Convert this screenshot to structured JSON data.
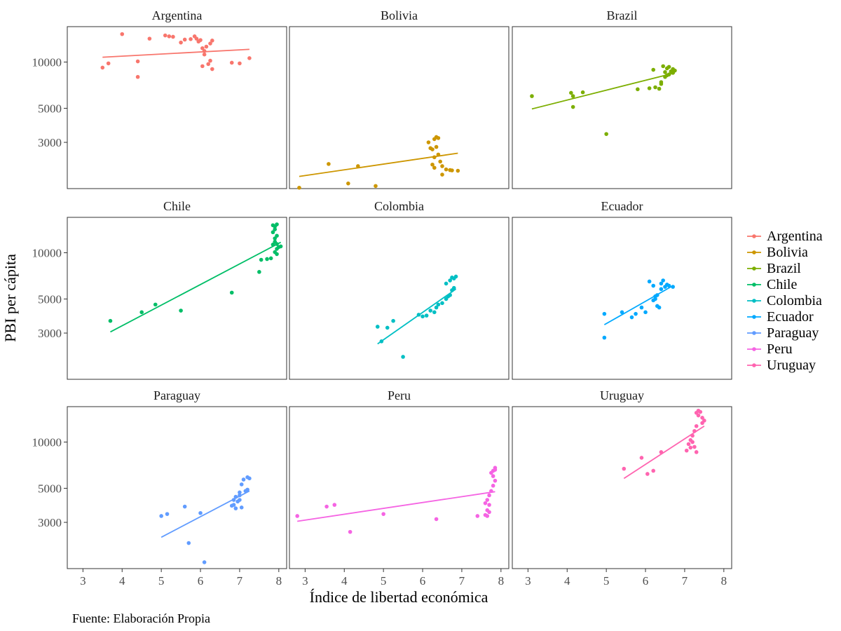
{
  "chart_data": {
    "type": "scatter",
    "layout": "facet-grid-3x3",
    "xlabel": "Índice de libertad económica",
    "ylabel": "PBI per cápita",
    "caption": "Fuente: Elaboración Propia",
    "xlim": [
      2.6,
      8.2
    ],
    "x_ticks": [
      3,
      4,
      5,
      6,
      7,
      8
    ],
    "y_scale": "log",
    "ylim": [
      1500,
      17000
    ],
    "y_ticks": [
      3000,
      5000,
      10000
    ],
    "y_tick_labels": [
      "3000",
      "5000",
      "10000"
    ],
    "grid": false,
    "legend_position": "right",
    "trend_line": "linear fit per panel",
    "series": [
      {
        "name": "Argentina",
        "color": "#F8766D",
        "points": [
          [
            3.5,
            9200
          ],
          [
            3.65,
            9800
          ],
          [
            4.0,
            15200
          ],
          [
            4.4,
            10100
          ],
          [
            4.4,
            8000
          ],
          [
            4.7,
            14200
          ],
          [
            5.1,
            14900
          ],
          [
            5.2,
            14700
          ],
          [
            5.3,
            14600
          ],
          [
            5.5,
            13400
          ],
          [
            5.6,
            14000
          ],
          [
            5.75,
            14100
          ],
          [
            5.85,
            14700
          ],
          [
            5.9,
            14200
          ],
          [
            5.95,
            13600
          ],
          [
            6.0,
            13900
          ],
          [
            6.05,
            12300
          ],
          [
            6.1,
            11800
          ],
          [
            6.15,
            12600
          ],
          [
            6.05,
            9400
          ],
          [
            6.1,
            11200
          ],
          [
            6.25,
            13200
          ],
          [
            6.3,
            13800
          ],
          [
            6.2,
            9700
          ],
          [
            6.25,
            10200
          ],
          [
            6.3,
            9000
          ],
          [
            6.8,
            9900
          ],
          [
            7.0,
            9800
          ],
          [
            7.25,
            10600
          ]
        ],
        "fit": [
          [
            3.5,
            10750
          ],
          [
            7.25,
            12100
          ]
        ]
      },
      {
        "name": "Bolivia",
        "color": "#CD9600",
        "points": [
          [
            2.85,
            1520
          ],
          [
            3.6,
            2170
          ],
          [
            4.1,
            1620
          ],
          [
            4.35,
            2100
          ],
          [
            4.8,
            1560
          ],
          [
            6.15,
            3000
          ],
          [
            6.2,
            2750
          ],
          [
            6.25,
            2700
          ],
          [
            6.3,
            3150
          ],
          [
            6.35,
            2800
          ],
          [
            6.3,
            2400
          ],
          [
            6.4,
            2500
          ],
          [
            6.45,
            2250
          ],
          [
            6.5,
            2100
          ],
          [
            6.6,
            2000
          ],
          [
            6.7,
            1980
          ],
          [
            6.75,
            1970
          ],
          [
            6.9,
            1960
          ],
          [
            6.35,
            3250
          ],
          [
            6.4,
            3200
          ],
          [
            6.5,
            1850
          ],
          [
            6.3,
            2050
          ],
          [
            6.25,
            2150
          ]
        ],
        "fit": [
          [
            2.85,
            1800
          ],
          [
            6.9,
            2550
          ]
        ]
      },
      {
        "name": "Brazil",
        "color": "#7CAE00",
        "points": [
          [
            3.1,
            6000
          ],
          [
            4.1,
            6300
          ],
          [
            4.15,
            6000
          ],
          [
            4.15,
            5100
          ],
          [
            4.4,
            6350
          ],
          [
            5.0,
            3400
          ],
          [
            5.8,
            6650
          ],
          [
            6.1,
            6750
          ],
          [
            6.2,
            8900
          ],
          [
            6.25,
            6850
          ],
          [
            6.35,
            6700
          ],
          [
            6.4,
            7200
          ],
          [
            6.4,
            7400
          ],
          [
            6.45,
            9400
          ],
          [
            6.5,
            8000
          ],
          [
            6.5,
            8600
          ],
          [
            6.55,
            9100
          ],
          [
            6.6,
            8300
          ],
          [
            6.65,
            8700
          ],
          [
            6.7,
            9000
          ],
          [
            6.7,
            8500
          ],
          [
            6.75,
            8800
          ],
          [
            6.6,
            9300
          ],
          [
            6.55,
            8200
          ]
        ],
        "fit": [
          [
            3.1,
            4950
          ],
          [
            6.75,
            8500
          ]
        ]
      },
      {
        "name": "Chile",
        "color": "#00BE67",
        "points": [
          [
            3.7,
            3600
          ],
          [
            4.5,
            4100
          ],
          [
            4.85,
            4600
          ],
          [
            5.5,
            4200
          ],
          [
            6.8,
            5500
          ],
          [
            7.5,
            7500
          ],
          [
            7.55,
            9000
          ],
          [
            7.7,
            9100
          ],
          [
            7.8,
            9200
          ],
          [
            7.85,
            15100
          ],
          [
            7.9,
            14800
          ],
          [
            7.95,
            15300
          ],
          [
            7.9,
            14200
          ],
          [
            7.85,
            13600
          ],
          [
            7.9,
            12400
          ],
          [
            7.95,
            11400
          ],
          [
            8.0,
            10900
          ],
          [
            7.95,
            10600
          ],
          [
            8.05,
            11000
          ],
          [
            7.9,
            10100
          ],
          [
            7.95,
            9800
          ],
          [
            7.85,
            11300
          ],
          [
            7.9,
            11800
          ],
          [
            7.95,
            12900
          ]
        ],
        "fit": [
          [
            3.7,
            3050
          ],
          [
            8.05,
            11700
          ]
        ]
      },
      {
        "name": "Colombia",
        "color": "#00BFC4",
        "points": [
          [
            4.85,
            3300
          ],
          [
            4.95,
            2650
          ],
          [
            5.1,
            3250
          ],
          [
            5.25,
            3600
          ],
          [
            5.5,
            2100
          ],
          [
            5.9,
            3950
          ],
          [
            6.0,
            3850
          ],
          [
            6.1,
            3900
          ],
          [
            6.2,
            4200
          ],
          [
            6.3,
            4100
          ],
          [
            6.35,
            4400
          ],
          [
            6.4,
            4600
          ],
          [
            6.5,
            4700
          ],
          [
            6.6,
            5000
          ],
          [
            6.7,
            5300
          ],
          [
            6.75,
            5700
          ],
          [
            6.8,
            5900
          ],
          [
            6.6,
            6300
          ],
          [
            6.7,
            6600
          ],
          [
            6.8,
            6800
          ],
          [
            6.85,
            7000
          ],
          [
            6.75,
            6900
          ],
          [
            6.65,
            5200
          ]
        ],
        "fit": [
          [
            4.85,
            2550
          ],
          [
            6.85,
            5800
          ]
        ]
      },
      {
        "name": "Ecuador",
        "color": "#00A9FF",
        "points": [
          [
            4.95,
            4000
          ],
          [
            4.95,
            2800
          ],
          [
            5.4,
            4100
          ],
          [
            5.65,
            3800
          ],
          [
            5.75,
            4000
          ],
          [
            5.9,
            4400
          ],
          [
            6.0,
            4100
          ],
          [
            6.1,
            6500
          ],
          [
            6.2,
            4900
          ],
          [
            6.25,
            5200
          ],
          [
            6.3,
            4500
          ],
          [
            6.35,
            4400
          ],
          [
            6.4,
            5800
          ],
          [
            6.5,
            6000
          ],
          [
            6.55,
            6200
          ],
          [
            6.6,
            6100
          ],
          [
            6.7,
            6000
          ],
          [
            6.2,
            6100
          ],
          [
            6.25,
            5000
          ],
          [
            6.3,
            5300
          ],
          [
            6.4,
            6300
          ],
          [
            6.45,
            6600
          ]
        ],
        "fit": [
          [
            4.95,
            3400
          ],
          [
            6.7,
            6100
          ]
        ]
      },
      {
        "name": "Paraguay",
        "color": "#619CFF",
        "points": [
          [
            5.0,
            3300
          ],
          [
            5.15,
            3400
          ],
          [
            5.6,
            3800
          ],
          [
            5.7,
            2200
          ],
          [
            6.0,
            3450
          ],
          [
            6.1,
            1650
          ],
          [
            6.8,
            3850
          ],
          [
            6.85,
            3900
          ],
          [
            6.9,
            3700
          ],
          [
            6.95,
            4100
          ],
          [
            7.0,
            4200
          ],
          [
            7.0,
            4700
          ],
          [
            7.05,
            5300
          ],
          [
            7.05,
            3750
          ],
          [
            7.1,
            5700
          ],
          [
            7.15,
            4800
          ],
          [
            7.2,
            5900
          ],
          [
            7.25,
            5800
          ],
          [
            7.2,
            4900
          ],
          [
            6.9,
            4400
          ],
          [
            6.85,
            4200
          ],
          [
            7.0,
            4500
          ]
        ],
        "fit": [
          [
            5.0,
            2400
          ],
          [
            7.25,
            4800
          ]
        ]
      },
      {
        "name": "Peru",
        "color": "#F564E3",
        "points": [
          [
            2.8,
            3300
          ],
          [
            3.55,
            3800
          ],
          [
            3.75,
            3900
          ],
          [
            4.15,
            2600
          ],
          [
            5.0,
            3400
          ],
          [
            6.35,
            3150
          ],
          [
            7.4,
            3300
          ],
          [
            7.6,
            3350
          ],
          [
            7.65,
            3600
          ],
          [
            7.7,
            3900
          ],
          [
            7.65,
            4200
          ],
          [
            7.7,
            4500
          ],
          [
            7.75,
            4800
          ],
          [
            7.8,
            5200
          ],
          [
            7.85,
            5600
          ],
          [
            7.75,
            6300
          ],
          [
            7.8,
            6500
          ],
          [
            7.85,
            6800
          ],
          [
            7.8,
            6000
          ],
          [
            7.85,
            6600
          ],
          [
            7.7,
            3500
          ],
          [
            7.65,
            3300
          ],
          [
            7.6,
            4000
          ]
        ],
        "fit": [
          [
            2.8,
            3050
          ],
          [
            7.85,
            4750
          ]
        ]
      },
      {
        "name": "Uruguay",
        "color": "#FF64B0",
        "points": [
          [
            5.45,
            6700
          ],
          [
            5.9,
            7900
          ],
          [
            6.05,
            6200
          ],
          [
            6.2,
            6500
          ],
          [
            6.4,
            8600
          ],
          [
            7.05,
            8800
          ],
          [
            7.1,
            9700
          ],
          [
            7.15,
            10300
          ],
          [
            7.2,
            11000
          ],
          [
            7.15,
            9200
          ],
          [
            7.25,
            9300
          ],
          [
            7.3,
            8600
          ],
          [
            7.25,
            11800
          ],
          [
            7.3,
            15500
          ],
          [
            7.35,
            16000
          ],
          [
            7.4,
            15700
          ],
          [
            7.45,
            14400
          ],
          [
            7.5,
            13800
          ],
          [
            7.45,
            13300
          ],
          [
            7.2,
            10000
          ],
          [
            7.3,
            12700
          ],
          [
            7.35,
            14900
          ]
        ],
        "fit": [
          [
            5.45,
            5800
          ],
          [
            7.5,
            12700
          ]
        ]
      }
    ]
  }
}
